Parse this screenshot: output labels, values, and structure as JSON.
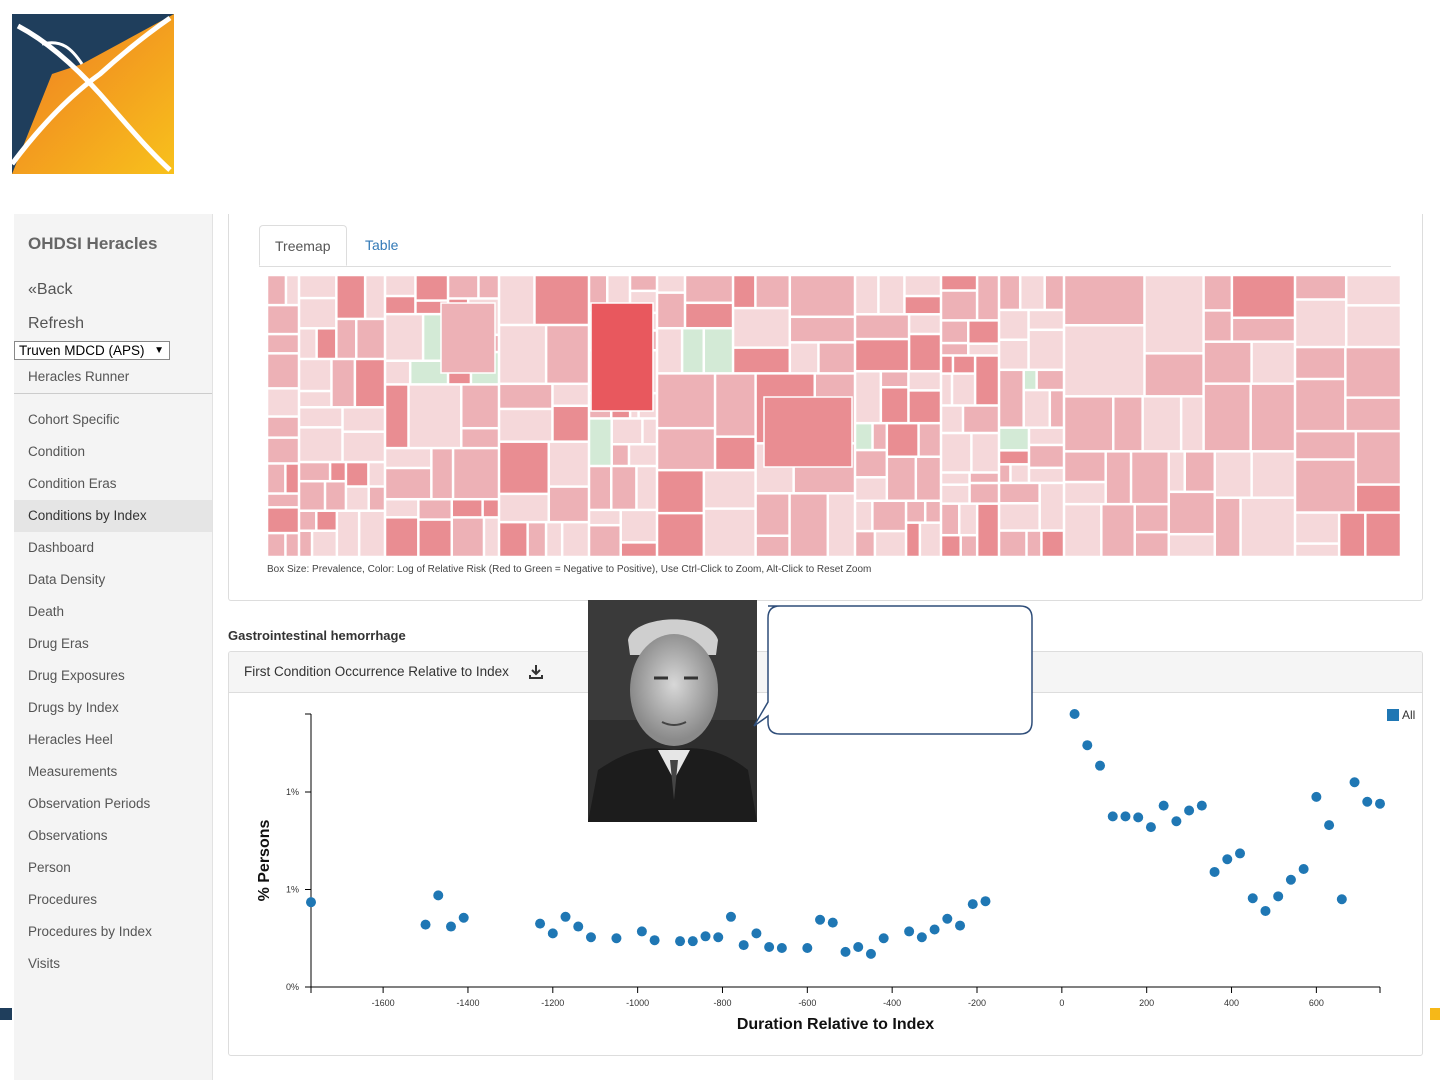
{
  "sidebar": {
    "app_title": "OHDSI Heracles",
    "back": "«Back",
    "refresh": "Refresh",
    "source_selected": "Truven MDCD (APS)",
    "runner": "Heracles Runner",
    "nav": [
      {
        "label": "Cohort Specific",
        "active": false
      },
      {
        "label": "Condition",
        "active": false
      },
      {
        "label": "Condition Eras",
        "active": false
      },
      {
        "label": "Conditions by Index",
        "active": true
      },
      {
        "label": "Dashboard",
        "active": false
      },
      {
        "label": "Data Density",
        "active": false
      },
      {
        "label": "Death",
        "active": false
      },
      {
        "label": "Drug Eras",
        "active": false
      },
      {
        "label": "Drug Exposures",
        "active": false
      },
      {
        "label": "Drugs by Index",
        "active": false
      },
      {
        "label": "Heracles Heel",
        "active": false
      },
      {
        "label": "Measurements",
        "active": false
      },
      {
        "label": "Observation Periods",
        "active": false
      },
      {
        "label": "Observations",
        "active": false
      },
      {
        "label": "Person",
        "active": false
      },
      {
        "label": "Procedures",
        "active": false
      },
      {
        "label": "Procedures by Index",
        "active": false
      },
      {
        "label": "Visits",
        "active": false
      }
    ]
  },
  "tabs": {
    "treemap": "Treemap",
    "table": "Table",
    "active": "Treemap"
  },
  "treemap": {
    "caption": "Box Size: Prevalence, Color: Log of Relative Risk (Red to Green = Negative to Positive), Use Ctrl-Click to Zoom, Alt-Click to Reset Zoom",
    "colors": {
      "light": "#f5d8da",
      "mid": "#edb1b6",
      "strong": "#e98d92",
      "deep": "#e8585e",
      "green": "#d3ead6"
    }
  },
  "condition_title": "Gastrointestinal hemorrhage",
  "scatter_panel": {
    "title": "First Condition Occurrence Relative to Index",
    "download_icon": "download-icon"
  },
  "chart_data": {
    "type": "scatter",
    "xlabel": "Duration Relative to Index",
    "ylabel": "% Persons",
    "x_ticks": [
      -1600,
      -1400,
      -1200,
      -1000,
      -800,
      -600,
      -400,
      -200,
      0,
      200,
      400,
      600
    ],
    "y_tick_labels": [
      "0%",
      "1%",
      "1%"
    ],
    "y_tick_values": [
      0,
      1,
      2
    ],
    "xlim": [
      -1770,
      750
    ],
    "ylim": [
      0,
      2.8
    ],
    "legend": {
      "label": "All",
      "position": "top-right",
      "color": "#1f77b4"
    },
    "series": [
      {
        "name": "All",
        "color": "#1f77b4",
        "points": [
          [
            -1770,
            0.87
          ],
          [
            -1500,
            0.64
          ],
          [
            -1470,
            0.94
          ],
          [
            -1440,
            0.62
          ],
          [
            -1410,
            0.71
          ],
          [
            -1230,
            0.65
          ],
          [
            -1200,
            0.55
          ],
          [
            -1170,
            0.72
          ],
          [
            -1140,
            0.62
          ],
          [
            -1110,
            0.51
          ],
          [
            -1050,
            0.5
          ],
          [
            -990,
            0.57
          ],
          [
            -960,
            0.48
          ],
          [
            -900,
            0.47
          ],
          [
            -870,
            0.47
          ],
          [
            -840,
            0.52
          ],
          [
            -810,
            0.51
          ],
          [
            -780,
            0.72
          ],
          [
            -750,
            0.43
          ],
          [
            -720,
            0.55
          ],
          [
            -690,
            0.41
          ],
          [
            -660,
            0.4
          ],
          [
            -600,
            0.4
          ],
          [
            -570,
            0.69
          ],
          [
            -540,
            0.66
          ],
          [
            -510,
            0.36
          ],
          [
            -480,
            0.41
          ],
          [
            -450,
            0.34
          ],
          [
            -420,
            0.5
          ],
          [
            -360,
            0.57
          ],
          [
            -330,
            0.51
          ],
          [
            -300,
            0.59
          ],
          [
            -270,
            0.7
          ],
          [
            -240,
            0.63
          ],
          [
            -210,
            0.85
          ],
          [
            -180,
            0.88
          ],
          [
            30,
            2.8
          ],
          [
            60,
            2.48
          ],
          [
            90,
            2.27
          ],
          [
            120,
            1.75
          ],
          [
            150,
            1.75
          ],
          [
            180,
            1.74
          ],
          [
            210,
            1.64
          ],
          [
            240,
            1.86
          ],
          [
            270,
            1.7
          ],
          [
            300,
            1.81
          ],
          [
            330,
            1.86
          ],
          [
            360,
            1.18
          ],
          [
            390,
            1.31
          ],
          [
            420,
            1.37
          ],
          [
            450,
            0.91
          ],
          [
            480,
            0.78
          ],
          [
            510,
            0.93
          ],
          [
            540,
            1.1
          ],
          [
            570,
            1.21
          ],
          [
            600,
            1.95
          ],
          [
            630,
            1.66
          ],
          [
            660,
            0.9
          ],
          [
            690,
            2.1
          ],
          [
            720,
            1.9
          ],
          [
            750,
            1.88
          ]
        ]
      }
    ]
  }
}
